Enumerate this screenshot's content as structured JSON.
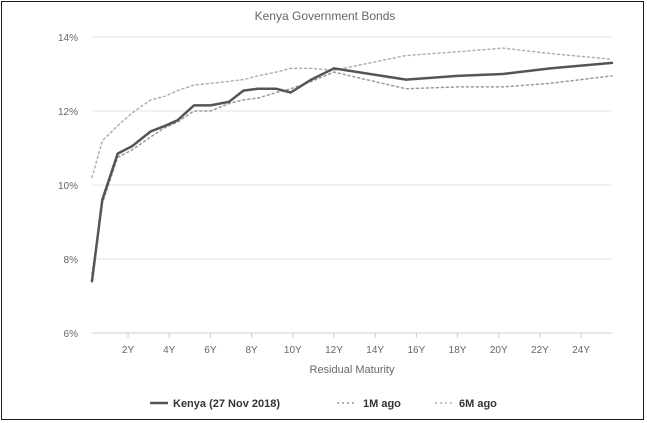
{
  "chart_data": {
    "type": "line",
    "title": "Kenya Government Bonds",
    "xlabel": "Residual Maturity",
    "ylabel": "",
    "x_ticks": [
      "2Y",
      "4Y",
      "6Y",
      "8Y",
      "10Y",
      "12Y",
      "14Y",
      "16Y",
      "18Y",
      "20Y",
      "22Y",
      "24Y"
    ],
    "x_tick_values": [
      2,
      4,
      6,
      8,
      10,
      12,
      14,
      16,
      18,
      20,
      22,
      24
    ],
    "y_ticks": [
      "6%",
      "8%",
      "10%",
      "12%",
      "14%"
    ],
    "y_tick_values": [
      6,
      8,
      10,
      12,
      14
    ],
    "xlim": [
      0.25,
      25.5
    ],
    "ylim": [
      6,
      14
    ],
    "grid": true,
    "legend_position": "bottom",
    "colors": {
      "kenya": "#555555",
      "m1": "#9a9a9a",
      "m6": "#b0b0b0",
      "grid": "#e6e6e6",
      "frame": "#1a1a1a"
    },
    "series": [
      {
        "name": "Kenya (27 Nov 2018)",
        "style": "solid",
        "x": [
          0.25,
          0.75,
          1.5,
          2.2,
          3.1,
          3.8,
          4.4,
          5.2,
          6.0,
          6.9,
          7.6,
          8.3,
          9.2,
          9.9,
          10.9,
          12.0,
          15.5,
          18.0,
          20.2,
          22.5,
          25.5
        ],
        "values": [
          7.4,
          9.6,
          10.85,
          11.05,
          11.45,
          11.6,
          11.75,
          12.15,
          12.15,
          12.25,
          12.55,
          12.6,
          12.6,
          12.5,
          12.85,
          13.15,
          12.85,
          12.95,
          13.0,
          13.15,
          13.3
        ]
      },
      {
        "name": "1M ago",
        "style": "dotted",
        "x": [
          0.25,
          0.75,
          1.5,
          2.2,
          3.1,
          3.8,
          4.4,
          5.2,
          6.0,
          6.9,
          7.6,
          8.3,
          9.2,
          9.9,
          10.9,
          12.0,
          15.5,
          18.0,
          20.2,
          22.5,
          25.5
        ],
        "values": [
          7.6,
          9.5,
          10.75,
          10.95,
          11.3,
          11.55,
          11.7,
          12.0,
          12.0,
          12.2,
          12.3,
          12.35,
          12.5,
          12.6,
          12.8,
          13.05,
          12.6,
          12.65,
          12.65,
          12.75,
          12.95
        ]
      },
      {
        "name": "6M ago",
        "style": "dotted",
        "x": [
          0.25,
          0.75,
          1.5,
          2.2,
          3.1,
          3.8,
          4.4,
          5.2,
          6.0,
          6.9,
          7.6,
          8.3,
          9.2,
          9.9,
          10.9,
          12.0,
          15.5,
          18.0,
          20.2,
          22.5,
          25.5
        ],
        "values": [
          10.2,
          11.2,
          11.6,
          11.95,
          12.3,
          12.4,
          12.55,
          12.7,
          12.75,
          12.8,
          12.85,
          12.95,
          13.05,
          13.15,
          13.15,
          13.1,
          13.5,
          13.6,
          13.7,
          13.55,
          13.4
        ]
      }
    ]
  }
}
